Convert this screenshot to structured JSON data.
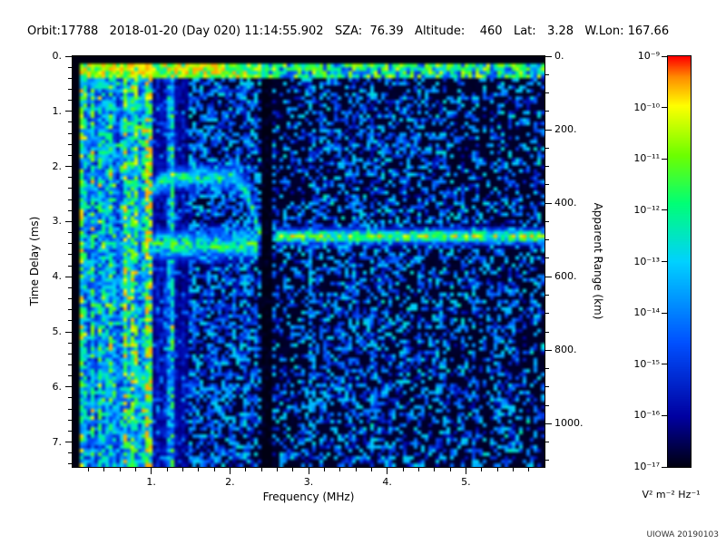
{
  "header": {
    "text": "Orbit:17788   2018-01-20 (Day 020) 11:14:55.902   SZA:  76.39   Altitude:    460   Lat:   3.28   W.Lon: 167.66"
  },
  "footer": {
    "credit": "UIOWA 20190103"
  },
  "chart_data": {
    "type": "heatmap",
    "description": "Radar sounder ionogram: received spectral density vs sounding frequency and echo time delay",
    "xlabel": "Frequency (MHz)",
    "ylabel_left": "Time Delay (ms)",
    "ylabel_right": "Apparent Range (km)",
    "x_range_mhz": [
      0.0,
      6.0
    ],
    "y_range_ms": [
      0.0,
      7.45
    ],
    "right_axis_km_per_ms": 150,
    "x_ticks": {
      "values": [
        1,
        2,
        3,
        4,
        5
      ],
      "labels": [
        "1.",
        "2.",
        "3.",
        "4.",
        "5."
      ],
      "minor_step": 0.2
    },
    "y_ticks": {
      "values": [
        0,
        1,
        2,
        3,
        4,
        5,
        6,
        7
      ],
      "labels": [
        "0.",
        "1.",
        "2.",
        "3.",
        "4.",
        "5.",
        "6.",
        "7."
      ],
      "minor_step": 0.2
    },
    "right_ticks": {
      "values": [
        0,
        200,
        400,
        600,
        800,
        1000
      ],
      "labels": [
        "0.",
        "200.",
        "400.",
        "600.",
        "800.",
        "1000."
      ],
      "minor_step": 50
    },
    "colorbar": {
      "scale": "log",
      "units": "V² m⁻² Hz⁻¹",
      "exponents": [
        -9,
        -10,
        -11,
        -12,
        -13,
        -14,
        -15,
        -16,
        -17
      ],
      "labels": [
        "10⁻⁹",
        "10⁻¹⁰",
        "10⁻¹¹",
        "10⁻¹²",
        "10⁻¹³",
        "10⁻¹⁴",
        "10⁻¹⁵",
        "10⁻¹⁶",
        "10⁻¹⁷"
      ],
      "gradient_stops": [
        {
          "v": 0.0,
          "rgb": [
            0,
            0,
            18
          ]
        },
        {
          "v": 0.12,
          "rgb": [
            0,
            0,
            160
          ]
        },
        {
          "v": 0.3,
          "rgb": [
            0,
            80,
            255
          ]
        },
        {
          "v": 0.5,
          "rgb": [
            0,
            210,
            255
          ]
        },
        {
          "v": 0.64,
          "rgb": [
            0,
            255,
            120
          ]
        },
        {
          "v": 0.76,
          "rgb": [
            110,
            255,
            0
          ]
        },
        {
          "v": 0.88,
          "rgb": [
            255,
            255,
            0
          ]
        },
        {
          "v": 0.95,
          "rgb": [
            255,
            140,
            0
          ]
        },
        {
          "v": 1.0,
          "rgb": [
            255,
            0,
            0
          ]
        }
      ]
    },
    "features": {
      "seed": 20180120,
      "surface_band": {
        "delay_ms": [
          0.16,
          0.38
        ],
        "freq_mhz": [
          0.08,
          6.0
        ],
        "intensity": 0.72
      },
      "ionosphere_echo_trace": {
        "delay_ms": 3.27,
        "freq_mhz": [
          2.6,
          6.0
        ],
        "sigma_ms": 0.09,
        "intensity": 0.8
      },
      "low_freq_echo_band": {
        "delay_ms": 3.42,
        "freq_mhz": [
          0.95,
          2.35
        ],
        "sigma_ms": 0.18,
        "intensity": 0.7
      },
      "cusp_trace": {
        "delay_ms": 2.2,
        "freq_mhz": [
          0.95,
          2.42
        ],
        "intensity": 0.66
      },
      "low_freq_noise": {
        "freq_mhz": [
          0.08,
          1.5
        ],
        "intensity": 0.6
      },
      "quiet_band": {
        "freq_mhz": [
          2.38,
          2.56
        ]
      }
    }
  }
}
